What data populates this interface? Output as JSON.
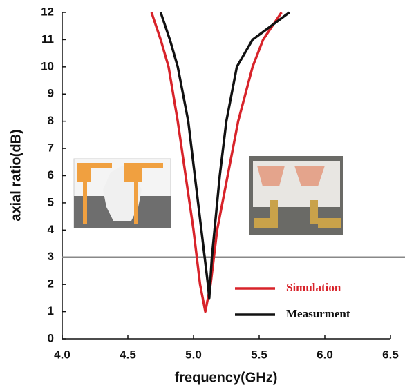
{
  "chart_data": {
    "type": "line",
    "xlabel": "frequency(GHz)",
    "ylabel": "axial ratio(dB)",
    "xlim": [
      4.0,
      6.5
    ],
    "ylim": [
      0,
      12
    ],
    "xticks": [
      {
        "value": 4.0,
        "label": "4.0"
      },
      {
        "value": 4.5,
        "label": "4.5"
      },
      {
        "value": 5.0,
        "label": "5.0"
      },
      {
        "value": 5.5,
        "label": "5.5"
      },
      {
        "value": 6.0,
        "label": "6.0"
      },
      {
        "value": 6.5,
        "label": "6.5"
      }
    ],
    "yticks": [
      0,
      1,
      2,
      3,
      4,
      5,
      6,
      7,
      8,
      9,
      10,
      11,
      12
    ],
    "hline": 3,
    "hline_color": "#888888",
    "legend": "lower right",
    "series": [
      {
        "name": "Simulation",
        "color": "#d8232a",
        "x": [
          4.68,
          4.75,
          4.81,
          4.88,
          4.94,
          5.0,
          5.05,
          5.09,
          5.13,
          5.18,
          5.26,
          5.34,
          5.45,
          5.53,
          5.67
        ],
        "values": [
          12,
          11,
          10,
          8,
          6,
          4,
          2,
          1.0,
          2,
          4,
          6,
          8,
          10,
          11,
          12
        ]
      },
      {
        "name": "Measurment",
        "color": "#111111",
        "x": [
          4.75,
          4.82,
          4.88,
          4.96,
          5.01,
          5.06,
          5.11,
          5.12,
          5.14,
          5.16,
          5.2,
          5.25,
          5.33,
          5.45,
          5.73
        ],
        "values": [
          12,
          11,
          10,
          8,
          6,
          4,
          2,
          1.5,
          3,
          4,
          6,
          8,
          10,
          11,
          12
        ]
      }
    ]
  }
}
